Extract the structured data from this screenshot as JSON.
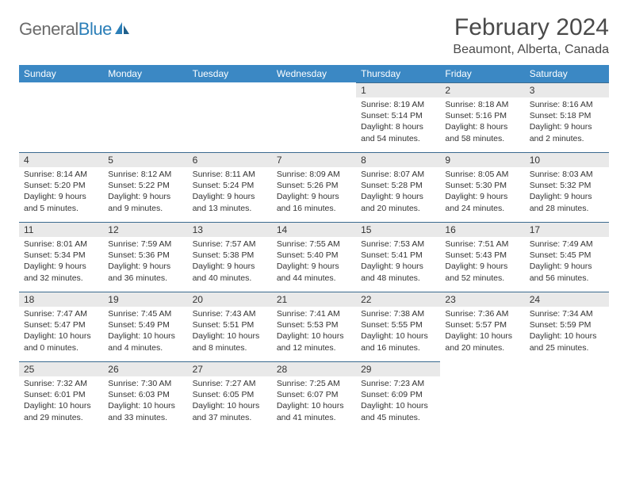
{
  "logo": {
    "text_gray": "General",
    "text_blue": "Blue"
  },
  "title": "February 2024",
  "location": "Beaumont, Alberta, Canada",
  "header_bg": "#3b88c4",
  "daynum_bg": "#e9e9e9",
  "border_color": "#3b6a8f",
  "day_names": [
    "Sunday",
    "Monday",
    "Tuesday",
    "Wednesday",
    "Thursday",
    "Friday",
    "Saturday"
  ],
  "weeks": [
    [
      null,
      null,
      null,
      null,
      {
        "n": "1",
        "sr": "8:19 AM",
        "ss": "5:14 PM",
        "dl": "8 hours and 54 minutes."
      },
      {
        "n": "2",
        "sr": "8:18 AM",
        "ss": "5:16 PM",
        "dl": "8 hours and 58 minutes."
      },
      {
        "n": "3",
        "sr": "8:16 AM",
        "ss": "5:18 PM",
        "dl": "9 hours and 2 minutes."
      }
    ],
    [
      {
        "n": "4",
        "sr": "8:14 AM",
        "ss": "5:20 PM",
        "dl": "9 hours and 5 minutes."
      },
      {
        "n": "5",
        "sr": "8:12 AM",
        "ss": "5:22 PM",
        "dl": "9 hours and 9 minutes."
      },
      {
        "n": "6",
        "sr": "8:11 AM",
        "ss": "5:24 PM",
        "dl": "9 hours and 13 minutes."
      },
      {
        "n": "7",
        "sr": "8:09 AM",
        "ss": "5:26 PM",
        "dl": "9 hours and 16 minutes."
      },
      {
        "n": "8",
        "sr": "8:07 AM",
        "ss": "5:28 PM",
        "dl": "9 hours and 20 minutes."
      },
      {
        "n": "9",
        "sr": "8:05 AM",
        "ss": "5:30 PM",
        "dl": "9 hours and 24 minutes."
      },
      {
        "n": "10",
        "sr": "8:03 AM",
        "ss": "5:32 PM",
        "dl": "9 hours and 28 minutes."
      }
    ],
    [
      {
        "n": "11",
        "sr": "8:01 AM",
        "ss": "5:34 PM",
        "dl": "9 hours and 32 minutes."
      },
      {
        "n": "12",
        "sr": "7:59 AM",
        "ss": "5:36 PM",
        "dl": "9 hours and 36 minutes."
      },
      {
        "n": "13",
        "sr": "7:57 AM",
        "ss": "5:38 PM",
        "dl": "9 hours and 40 minutes."
      },
      {
        "n": "14",
        "sr": "7:55 AM",
        "ss": "5:40 PM",
        "dl": "9 hours and 44 minutes."
      },
      {
        "n": "15",
        "sr": "7:53 AM",
        "ss": "5:41 PM",
        "dl": "9 hours and 48 minutes."
      },
      {
        "n": "16",
        "sr": "7:51 AM",
        "ss": "5:43 PM",
        "dl": "9 hours and 52 minutes."
      },
      {
        "n": "17",
        "sr": "7:49 AM",
        "ss": "5:45 PM",
        "dl": "9 hours and 56 minutes."
      }
    ],
    [
      {
        "n": "18",
        "sr": "7:47 AM",
        "ss": "5:47 PM",
        "dl": "10 hours and 0 minutes."
      },
      {
        "n": "19",
        "sr": "7:45 AM",
        "ss": "5:49 PM",
        "dl": "10 hours and 4 minutes."
      },
      {
        "n": "20",
        "sr": "7:43 AM",
        "ss": "5:51 PM",
        "dl": "10 hours and 8 minutes."
      },
      {
        "n": "21",
        "sr": "7:41 AM",
        "ss": "5:53 PM",
        "dl": "10 hours and 12 minutes."
      },
      {
        "n": "22",
        "sr": "7:38 AM",
        "ss": "5:55 PM",
        "dl": "10 hours and 16 minutes."
      },
      {
        "n": "23",
        "sr": "7:36 AM",
        "ss": "5:57 PM",
        "dl": "10 hours and 20 minutes."
      },
      {
        "n": "24",
        "sr": "7:34 AM",
        "ss": "5:59 PM",
        "dl": "10 hours and 25 minutes."
      }
    ],
    [
      {
        "n": "25",
        "sr": "7:32 AM",
        "ss": "6:01 PM",
        "dl": "10 hours and 29 minutes."
      },
      {
        "n": "26",
        "sr": "7:30 AM",
        "ss": "6:03 PM",
        "dl": "10 hours and 33 minutes."
      },
      {
        "n": "27",
        "sr": "7:27 AM",
        "ss": "6:05 PM",
        "dl": "10 hours and 37 minutes."
      },
      {
        "n": "28",
        "sr": "7:25 AM",
        "ss": "6:07 PM",
        "dl": "10 hours and 41 minutes."
      },
      {
        "n": "29",
        "sr": "7:23 AM",
        "ss": "6:09 PM",
        "dl": "10 hours and 45 minutes."
      },
      null,
      null
    ]
  ]
}
